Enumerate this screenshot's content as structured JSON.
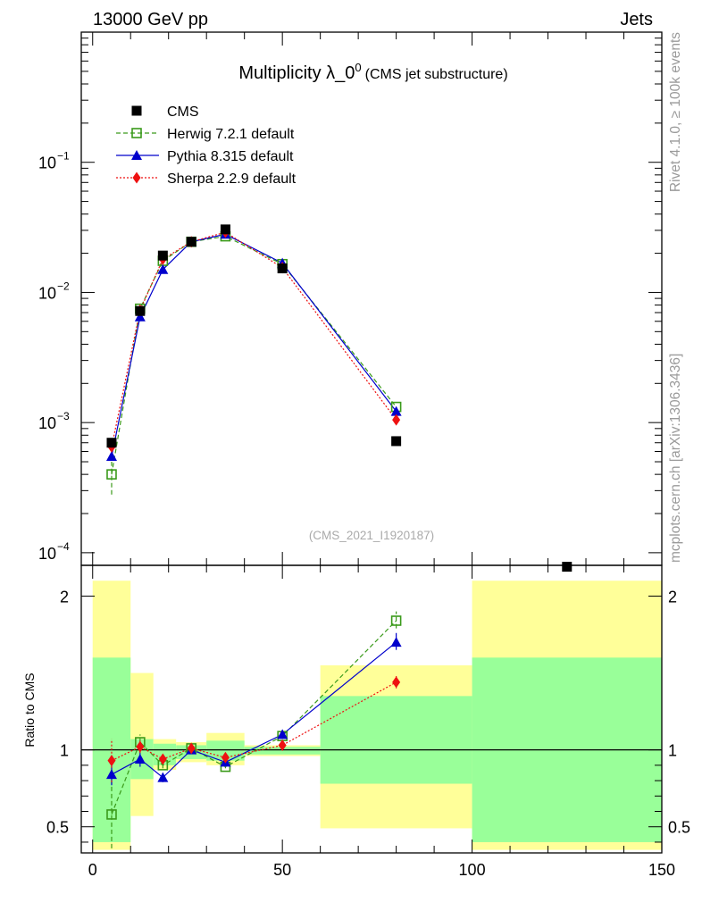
{
  "header": {
    "left": "13000 GeV pp",
    "right": "Jets"
  },
  "side_labels": {
    "rivet": "Rivet 4.1.0, ≥ 100k events",
    "mcplots": "mcplots.cern.ch [arXiv:1306.3436]"
  },
  "watermark": "(CMS_2021_I1920187)",
  "title": {
    "main": "Multiplicity λ_0",
    "sup": "0",
    "sub": "(CMS jet substructure)"
  },
  "legend": [
    {
      "label": "CMS",
      "color": "#000000",
      "marker": "square-filled"
    },
    {
      "label": "Herwig 7.2.1 default",
      "color": "#3a9a1a",
      "marker": "square-open",
      "dash": "dashed"
    },
    {
      "label": "Pythia 8.315 default",
      "color": "#0000cc",
      "marker": "triangle",
      "dash": "solid"
    },
    {
      "label": "Sherpa 2.2.9 default",
      "color": "#ee1111",
      "marker": "diamond",
      "dash": "dotted"
    }
  ],
  "colors": {
    "band_inner": "#99ff99",
    "band_outer": "#ffff99"
  },
  "chart_data": [
    {
      "type": "line",
      "yscale": "log",
      "xlim": [
        -3,
        150
      ],
      "ylim": [
        8e-05,
        1.0
      ],
      "y_ticks": [
        0.1,
        0.01,
        0.001,
        0.0001
      ],
      "y_tick_labels": [
        "10",
        "10",
        "10",
        "10"
      ],
      "y_tick_exps": [
        "−1",
        "−2",
        "−3",
        "−4"
      ],
      "x": [
        5,
        12.5,
        18.5,
        26,
        35,
        50,
        80,
        125
      ],
      "series": [
        {
          "name": "CMS",
          "values": [
            0.0007,
            0.0072,
            0.0192,
            0.0245,
            0.0305,
            0.0153,
            0.00072,
            7.8e-05
          ]
        },
        {
          "name": "Herwig 7.2.1 default",
          "values": [
            0.0004,
            0.0075,
            0.0175,
            0.0245,
            0.027,
            0.0165,
            0.00132,
            null
          ],
          "err_low": [
            0.00012,
            null,
            null,
            null,
            null,
            null,
            null,
            null
          ],
          "err_high": [
            0.0001,
            null,
            null,
            null,
            null,
            null,
            null,
            null
          ]
        },
        {
          "name": "Pythia 8.315 default",
          "values": [
            0.00055,
            0.0065,
            0.015,
            0.0245,
            0.028,
            0.0168,
            0.00122,
            null
          ]
        },
        {
          "name": "Sherpa 2.2.9 default",
          "values": [
            0.00065,
            0.0073,
            0.018,
            0.0245,
            0.029,
            0.0155,
            0.00105,
            null
          ]
        }
      ]
    },
    {
      "type": "line",
      "ylabel": "Ratio to CMS",
      "xlim": [
        -3,
        150
      ],
      "ylim": [
        0.33,
        2.2
      ],
      "x_ticks": [
        0,
        50,
        100,
        150
      ],
      "x_tick_labels": [
        "0",
        "50",
        "100",
        "150"
      ],
      "y_ticks": [
        0.5,
        1,
        2
      ],
      "y_tick_labels": [
        "0.5",
        "1",
        "2"
      ],
      "x": [
        5,
        12.5,
        18.5,
        26,
        35,
        50,
        80
      ],
      "bands": [
        {
          "x": [
            0,
            10
          ],
          "inner": [
            0.4,
            1.6
          ],
          "outer": [
            0.35,
            2.1
          ]
        },
        {
          "x": [
            10,
            16
          ],
          "inner": [
            0.81,
            1.07
          ],
          "outer": [
            0.57,
            1.5
          ]
        },
        {
          "x": [
            16,
            22
          ],
          "inner": [
            0.9,
            1.04
          ],
          "outer": [
            0.87,
            1.07
          ]
        },
        {
          "x": [
            22,
            30
          ],
          "inner": [
            0.94,
            1.03
          ],
          "outer": [
            0.92,
            1.05
          ]
        },
        {
          "x": [
            30,
            40
          ],
          "inner": [
            0.93,
            1.06
          ],
          "outer": [
            0.9,
            1.11
          ]
        },
        {
          "x": [
            40,
            60
          ],
          "inner": [
            0.97,
            1.02
          ],
          "outer": [
            0.96,
            1.03
          ]
        },
        {
          "x": [
            60,
            100
          ],
          "inner": [
            0.78,
            1.35
          ],
          "outer": [
            0.49,
            1.55
          ]
        },
        {
          "x": [
            100,
            150
          ],
          "inner": [
            0.4,
            1.6
          ],
          "outer": [
            0.35,
            2.1
          ]
        }
      ],
      "series": [
        {
          "name": "Herwig 7.2.1 default",
          "values": [
            0.58,
            1.05,
            0.9,
            1.01,
            0.89,
            1.09,
            1.84
          ],
          "err_low": [
            0.22,
            0.05,
            0.02,
            0.02,
            0.01,
            0.02,
            0.05
          ],
          "err_high": [
            0.22,
            0.05,
            0.02,
            0.02,
            0.01,
            0.02,
            0.06
          ]
        },
        {
          "name": "Pythia 8.315 default",
          "values": [
            0.84,
            0.94,
            0.82,
            1.0,
            0.92,
            1.1,
            1.7
          ],
          "err_low": [
            0.07,
            0.05,
            0.03,
            0.02,
            0.01,
            0.02,
            0.05
          ],
          "err_high": [
            0.07,
            0.05,
            0.03,
            0.02,
            0.01,
            0.02,
            0.06
          ]
        },
        {
          "name": "Sherpa 2.2.9 default",
          "values": [
            0.93,
            1.02,
            0.94,
            1.01,
            0.95,
            1.03,
            1.44
          ],
          "err_low": [
            0.14,
            0.04,
            0.02,
            0.02,
            0.01,
            0.01,
            0.04
          ],
          "err_high": [
            0.14,
            0.04,
            0.02,
            0.02,
            0.01,
            0.01,
            0.04
          ]
        }
      ]
    }
  ]
}
